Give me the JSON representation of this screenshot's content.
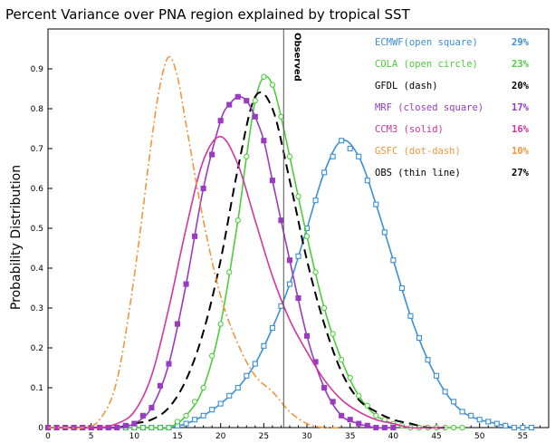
{
  "chart_data": {
    "type": "line",
    "title": "Percent Variance over PNA region explained by tropical SST",
    "xlabel": "",
    "ylabel": "Probability Distribution",
    "xlim": [
      0,
      58
    ],
    "ylim": [
      0,
      1.0
    ],
    "x_ticks": [
      0,
      5,
      10,
      15,
      20,
      25,
      30,
      35,
      40,
      45,
      50,
      55
    ],
    "y_ticks": [
      0,
      0.1,
      0.2,
      0.3,
      0.4,
      0.5,
      0.6,
      0.7,
      0.8,
      0.9
    ],
    "observed": {
      "x": 27.3,
      "label": "Observed"
    },
    "series": [
      {
        "name": "ECMWF(open square)",
        "percent": "29%",
        "color": "#3a8fd6",
        "style": "open-square",
        "x": [
          0,
          2,
          4,
          6,
          8,
          10,
          12,
          14,
          16,
          18,
          20,
          22,
          24,
          26,
          28,
          30,
          32,
          34,
          36,
          38,
          40,
          42,
          44,
          46,
          48,
          50,
          52,
          54,
          56
        ],
        "y": [
          0,
          0,
          0,
          0,
          0,
          0,
          0,
          0,
          0.01,
          0.03,
          0.06,
          0.1,
          0.16,
          0.25,
          0.36,
          0.5,
          0.64,
          0.72,
          0.68,
          0.56,
          0.42,
          0.28,
          0.17,
          0.09,
          0.04,
          0.02,
          0.01,
          0,
          0
        ]
      },
      {
        "name": "COLA (open circle)",
        "percent": "23%",
        "color": "#4ccd3a",
        "style": "open-circle",
        "x": [
          0,
          2,
          4,
          6,
          8,
          10,
          12,
          14,
          16,
          18,
          20,
          22,
          23,
          24,
          25,
          26,
          27,
          28,
          30,
          32,
          34,
          36,
          38,
          40,
          42,
          44,
          46,
          48
        ],
        "y": [
          0,
          0,
          0,
          0,
          0,
          0,
          0,
          0,
          0.03,
          0.1,
          0.26,
          0.52,
          0.68,
          0.82,
          0.88,
          0.86,
          0.78,
          0.68,
          0.48,
          0.3,
          0.17,
          0.08,
          0.03,
          0.01,
          0,
          0,
          0,
          0
        ]
      },
      {
        "name": "GFDL (dash)",
        "percent": "20%",
        "color": "#000000",
        "style": "dash",
        "x": [
          0,
          2,
          4,
          6,
          8,
          10,
          12,
          14,
          16,
          18,
          20,
          22,
          24,
          26,
          28,
          30,
          32,
          34,
          36,
          38,
          40,
          42,
          44,
          46
        ],
        "y": [
          0,
          0,
          0,
          0,
          0,
          0.01,
          0.02,
          0.05,
          0.12,
          0.24,
          0.42,
          0.65,
          0.83,
          0.8,
          0.62,
          0.42,
          0.26,
          0.14,
          0.07,
          0.04,
          0.02,
          0.01,
          0,
          0
        ]
      },
      {
        "name": "MRF  (closed square)",
        "percent": "17%",
        "color": "#9a3ac2",
        "style": "closed-square",
        "x": [
          0,
          2,
          4,
          6,
          8,
          10,
          12,
          14,
          16,
          18,
          20,
          21,
          22,
          23,
          24,
          25,
          26,
          28,
          30,
          32,
          34,
          36,
          38,
          40
        ],
        "y": [
          0,
          0,
          0,
          0,
          0,
          0.01,
          0.05,
          0.16,
          0.36,
          0.6,
          0.77,
          0.81,
          0.83,
          0.82,
          0.78,
          0.72,
          0.62,
          0.42,
          0.23,
          0.1,
          0.03,
          0.01,
          0,
          0
        ]
      },
      {
        "name": "CCM3 (solid)",
        "percent": "16%",
        "color": "#d6339c",
        "style": "solid",
        "x": [
          0,
          2,
          4,
          6,
          8,
          10,
          12,
          14,
          16,
          18,
          20,
          22,
          24,
          26,
          28,
          30,
          32,
          34,
          36,
          38,
          40,
          42,
          44,
          46
        ],
        "y": [
          0,
          0,
          0,
          0,
          0.01,
          0.04,
          0.13,
          0.3,
          0.5,
          0.67,
          0.73,
          0.66,
          0.52,
          0.38,
          0.27,
          0.19,
          0.12,
          0.07,
          0.04,
          0.02,
          0.01,
          0,
          0,
          0
        ]
      },
      {
        "name": "GSFC (dot-dash)",
        "percent": "10%",
        "color": "#f0963c",
        "style": "dot-dash",
        "x": [
          0,
          2,
          4,
          6,
          8,
          10,
          12,
          13,
          14,
          15,
          16,
          18,
          20,
          22,
          24,
          26,
          28,
          30,
          32,
          34
        ],
        "y": [
          0,
          0,
          0,
          0.02,
          0.12,
          0.38,
          0.72,
          0.86,
          0.93,
          0.88,
          0.76,
          0.52,
          0.33,
          0.21,
          0.13,
          0.09,
          0.04,
          0.01,
          0,
          0
        ]
      },
      {
        "name": "OBS  (thin line)",
        "percent": "27%",
        "color": "#000000",
        "style": "thin-line",
        "x": [],
        "y": []
      }
    ]
  }
}
